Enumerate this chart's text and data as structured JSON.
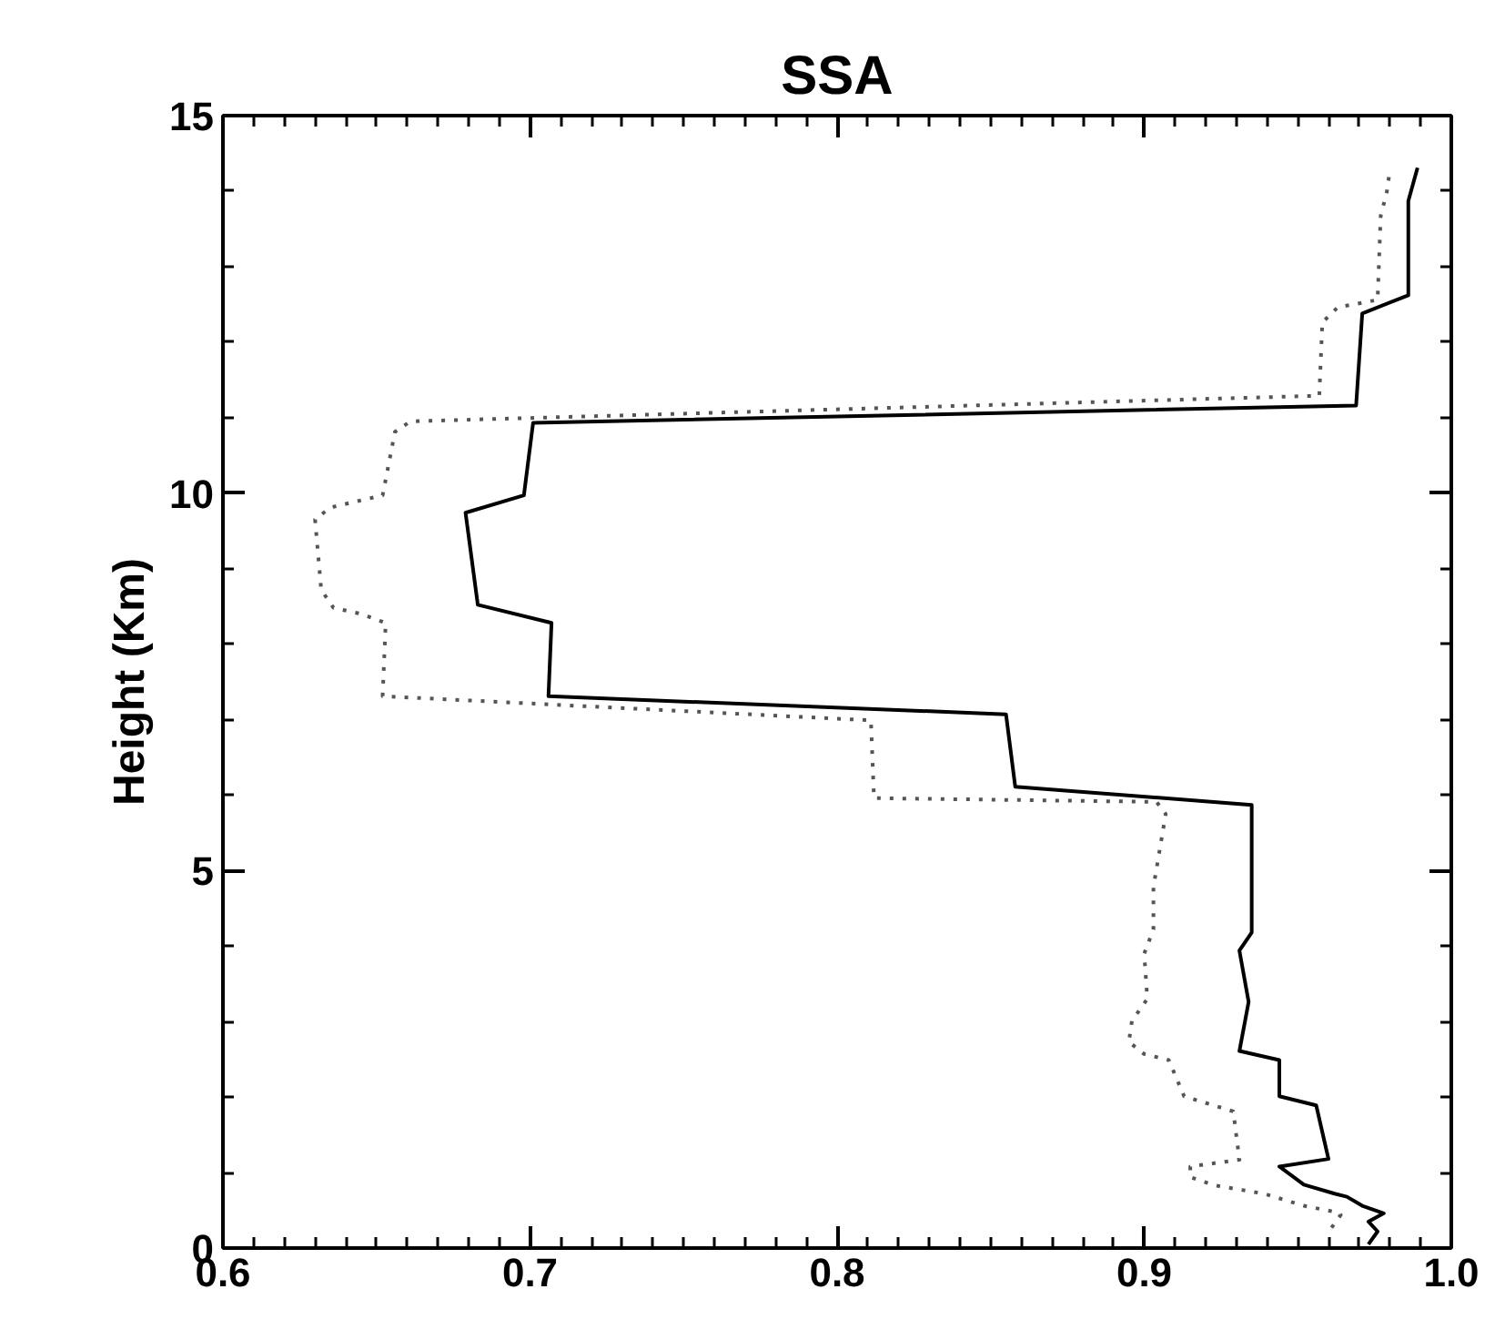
{
  "chart_data": {
    "type": "line",
    "title": "SSA",
    "ylabel": "Height (Km)",
    "xlim": [
      0.6,
      1.0
    ],
    "ylim": [
      0,
      15
    ],
    "xticks": [
      0.6,
      {
        "value": 0.61,
        "label": null
      },
      {
        "value": 0.62,
        "label": null
      },
      {
        "value": 0.63,
        "label": null
      },
      {
        "value": 0.64,
        "label": null
      },
      {
        "value": 0.65,
        "label": null
      },
      {
        "value": 0.66,
        "label": null
      },
      {
        "value": 0.67,
        "label": null
      },
      {
        "value": 0.68,
        "label": null
      },
      {
        "value": 0.69,
        "label": null
      },
      0.7,
      {
        "value": 0.71,
        "label": null
      },
      {
        "value": 0.72,
        "label": null
      },
      {
        "value": 0.73,
        "label": null
      },
      {
        "value": 0.74,
        "label": null
      },
      {
        "value": 0.75,
        "label": null
      },
      {
        "value": 0.76,
        "label": null
      },
      {
        "value": 0.77,
        "label": null
      },
      {
        "value": 0.78,
        "label": null
      },
      {
        "value": 0.79,
        "label": null
      },
      0.8,
      {
        "value": 0.81,
        "label": null
      },
      {
        "value": 0.82,
        "label": null
      },
      {
        "value": 0.83,
        "label": null
      },
      {
        "value": 0.84,
        "label": null
      },
      {
        "value": 0.85,
        "label": null
      },
      {
        "value": 0.86,
        "label": null
      },
      {
        "value": 0.87,
        "label": null
      },
      {
        "value": 0.88,
        "label": null
      },
      {
        "value": 0.89,
        "label": null
      },
      0.9,
      {
        "value": 0.91,
        "label": null
      },
      {
        "value": 0.92,
        "label": null
      },
      {
        "value": 0.93,
        "label": null
      },
      {
        "value": 0.94,
        "label": null
      },
      {
        "value": 0.95,
        "label": null
      },
      {
        "value": 0.96,
        "label": null
      },
      {
        "value": 0.97,
        "label": null
      },
      {
        "value": 0.98,
        "label": null
      },
      {
        "value": 0.99,
        "label": null
      },
      {
        "value": 1.0,
        "label": "1.0"
      }
    ],
    "yticks": [
      0,
      {
        "value": 1,
        "label": null
      },
      {
        "value": 2,
        "label": null
      },
      {
        "value": 3,
        "label": null
      },
      {
        "value": 4,
        "label": null
      },
      5,
      {
        "value": 6,
        "label": null
      },
      {
        "value": 7,
        "label": null
      },
      {
        "value": 8,
        "label": null
      },
      {
        "value": 9,
        "label": null
      },
      10,
      {
        "value": 11,
        "label": null
      },
      {
        "value": 12,
        "label": null
      },
      {
        "value": 13,
        "label": null
      },
      {
        "value": 14,
        "label": null
      },
      15
    ],
    "marker": "none",
    "series": [
      {
        "color": "#000000",
        "line_style": "solid",
        "x": [
          0.973,
          0.976,
          0.973,
          0.978,
          0.971,
          0.966,
          0.962,
          0.952,
          0.948,
          0.944,
          0.96,
          0.956,
          0.944,
          0.944,
          0.931,
          0.934,
          0.931,
          0.935,
          0.935,
          0.858,
          0.855,
          0.706,
          0.707,
          0.683,
          0.679,
          0.698,
          0.701,
          0.969,
          0.971,
          0.986,
          0.986,
          0.989
        ],
        "values": [
          0.05,
          0.22,
          0.35,
          0.46,
          0.56,
          0.68,
          0.72,
          0.84,
          0.96,
          1.08,
          1.18,
          1.89,
          2.01,
          2.49,
          2.61,
          3.26,
          3.94,
          4.18,
          5.87,
          6.11,
          7.07,
          7.31,
          8.28,
          8.52,
          9.74,
          9.97,
          10.93,
          11.16,
          12.38,
          12.62,
          13.87,
          14.31
        ]
      },
      {
        "color": "#555555",
        "line_style": "dotted",
        "x": [
          0.961,
          0.964,
          0.962,
          0.952,
          0.939,
          0.923,
          0.915,
          0.915,
          0.931,
          0.929,
          0.913,
          0.908,
          0.9,
          0.895,
          0.896,
          0.901,
          0.9,
          0.903,
          0.903,
          0.907,
          0.904,
          0.812,
          0.811,
          0.652,
          0.653,
          0.645,
          0.636,
          0.632,
          0.63,
          0.635,
          0.652,
          0.656,
          0.661,
          0.957,
          0.958,
          0.963,
          0.976,
          0.977,
          0.979,
          0.98
        ],
        "values": [
          0.27,
          0.44,
          0.48,
          0.56,
          0.72,
          0.83,
          0.94,
          1.08,
          1.17,
          1.81,
          2.01,
          2.49,
          2.57,
          2.73,
          3.01,
          3.3,
          3.9,
          4.22,
          4.78,
          5.75,
          5.91,
          5.96,
          6.99,
          7.31,
          8.28,
          8.4,
          8.48,
          8.72,
          9.65,
          9.81,
          9.97,
          10.81,
          10.95,
          11.29,
          12.26,
          12.46,
          12.56,
          13.67,
          13.99,
          14.28
        ]
      }
    ]
  }
}
